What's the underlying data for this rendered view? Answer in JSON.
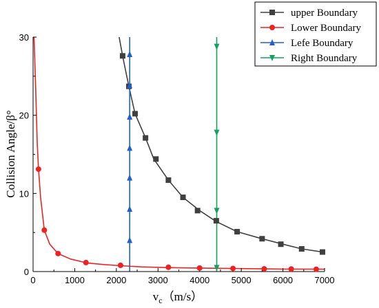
{
  "chart_data": {
    "type": "line",
    "xlabel": "v",
    "xlabel_sub": "c",
    "xlabel_unit": "（m/s）",
    "ylabel": "Collision Angle/β°",
    "xlim": [
      0,
      7000
    ],
    "ylim": [
      0,
      30
    ],
    "xticks": [
      0,
      1000,
      2000,
      3000,
      4000,
      5000,
      6000,
      7000
    ],
    "yticks": [
      0,
      10,
      20,
      30
    ],
    "grid": false,
    "legend_position": "top-right",
    "series": [
      {
        "name": "upper Boundary",
        "color": "#404040",
        "marker": "square",
        "curve": [
          [
            2050,
            30.5
          ],
          [
            2150,
            27.6
          ],
          [
            2300,
            23.7
          ],
          [
            2450,
            20.2
          ],
          [
            2700,
            17.1
          ],
          [
            2900,
            14.4
          ],
          [
            3250,
            11.7
          ],
          [
            3600,
            9.5
          ],
          [
            4000,
            7.8
          ],
          [
            4400,
            6.4
          ],
          [
            4900,
            5.1
          ],
          [
            5500,
            4.2
          ],
          [
            6000,
            3.5
          ],
          [
            6450,
            2.9
          ],
          [
            6950,
            2.5
          ]
        ],
        "markers": [
          [
            2150,
            27.6
          ],
          [
            2300,
            23.7
          ],
          [
            2450,
            20.2
          ],
          [
            2700,
            17.1
          ],
          [
            2950,
            14.4
          ],
          [
            3250,
            11.7
          ],
          [
            3600,
            9.5
          ],
          [
            3950,
            7.8
          ],
          [
            4400,
            6.5
          ],
          [
            4900,
            5.1
          ],
          [
            5500,
            4.2
          ],
          [
            5950,
            3.5
          ],
          [
            6450,
            2.9
          ],
          [
            6950,
            2.5
          ]
        ]
      },
      {
        "name": "Lower Boundary",
        "color": "#ee2222",
        "marker": "circle",
        "curve": [
          [
            20,
            30.5
          ],
          [
            60,
            24
          ],
          [
            100,
            16.5
          ],
          [
            130,
            13.1
          ],
          [
            180,
            9.5
          ],
          [
            270,
            5.3
          ],
          [
            400,
            3.5
          ],
          [
            600,
            2.3
          ],
          [
            900,
            1.6
          ],
          [
            1300,
            1.1
          ],
          [
            1700,
            0.9
          ],
          [
            2100,
            0.75
          ],
          [
            2600,
            0.6
          ],
          [
            3300,
            0.5
          ],
          [
            4000,
            0.45
          ],
          [
            5000,
            0.38
          ],
          [
            6000,
            0.32
          ],
          [
            7000,
            0.3
          ]
        ],
        "markers": [
          [
            130,
            13.1
          ],
          [
            270,
            5.3
          ],
          [
            600,
            2.3
          ],
          [
            1270,
            1.15
          ],
          [
            2100,
            0.8
          ],
          [
            3250,
            0.55
          ],
          [
            4000,
            0.45
          ],
          [
            4800,
            0.4
          ],
          [
            5550,
            0.35
          ],
          [
            6200,
            0.33
          ],
          [
            6800,
            0.3
          ]
        ]
      },
      {
        "name": "Lefe Boundary",
        "color": "#1f5fd6",
        "marker": "triangle-up",
        "curve": [
          [
            2320,
            0
          ],
          [
            2320,
            30.5
          ]
        ],
        "markers": [
          [
            2320,
            4
          ],
          [
            2320,
            8
          ],
          [
            2320,
            12
          ],
          [
            2320,
            15.8
          ],
          [
            2320,
            19.8
          ],
          [
            2320,
            23.8
          ],
          [
            2320,
            27.8
          ]
        ]
      },
      {
        "name": "Right Boundary",
        "color": "#16a060",
        "marker": "triangle-down",
        "curve": [
          [
            4410,
            0
          ],
          [
            4410,
            30.5
          ]
        ],
        "markers": [
          [
            4410,
            0.5
          ],
          [
            4410,
            7.8
          ],
          [
            4410,
            17.8
          ],
          [
            4410,
            28.8
          ]
        ]
      }
    ]
  }
}
